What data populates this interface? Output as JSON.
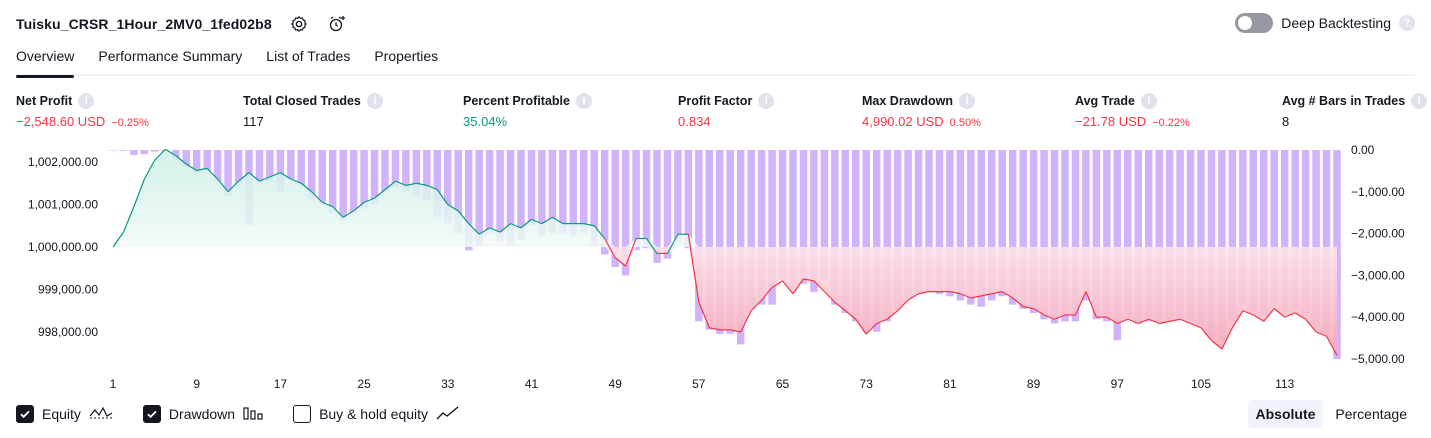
{
  "header": {
    "strategy_name": "Tuisku_CRSR_1Hour_2MV0_1fed02b8",
    "deep_backtesting_label": "Deep Backtesting",
    "deep_backtesting_enabled": false
  },
  "tabs": [
    {
      "label": "Overview",
      "active": true
    },
    {
      "label": "Performance Summary",
      "active": false
    },
    {
      "label": "List of Trades",
      "active": false
    },
    {
      "label": "Properties",
      "active": false
    }
  ],
  "metrics": [
    {
      "label": "Net Profit",
      "value": "−2,548.60 USD",
      "pct": "−0.25%",
      "tone": "neg"
    },
    {
      "label": "Total Closed Trades",
      "value": "117",
      "pct": "",
      "tone": "neu"
    },
    {
      "label": "Percent Profitable",
      "value": "35.04%",
      "pct": "",
      "tone": "pos"
    },
    {
      "label": "Profit Factor",
      "value": "0.834",
      "pct": "",
      "tone": "neg"
    },
    {
      "label": "Max Drawdown",
      "value": "4,990.02 USD",
      "pct": "0.50%",
      "tone": "neg"
    },
    {
      "label": "Avg Trade",
      "value": "−21.78 USD",
      "pct": "−0.22%",
      "tone": "neg"
    },
    {
      "label": "Avg # Bars in Trades",
      "value": "8",
      "pct": "",
      "tone": "neu"
    }
  ],
  "colors": {
    "positive": "#089981",
    "negative": "#f23645",
    "drawdown_bar": "#d1b3fb",
    "equity_fill_pos": "#cdeee6",
    "equity_fill_neg": "#f7a8b8"
  },
  "chart_data": {
    "type": "area",
    "x_ticks": [
      "1",
      "9",
      "17",
      "25",
      "33",
      "41",
      "49",
      "57",
      "65",
      "73",
      "81",
      "89",
      "97",
      "105",
      "113"
    ],
    "y_left_ticks": [
      "1,002,000.00",
      "1,001,000.00",
      "1,000,000.00",
      "999,000.00",
      "998,000.00"
    ],
    "y_left_values": [
      1002000,
      1001000,
      1000000,
      999000,
      998000
    ],
    "y_right_ticks": [
      "0.00",
      "−1,000.00",
      "−2,000.00",
      "−3,000.00",
      "−4,000.00",
      "−5,000.00"
    ],
    "y_right_values": [
      0,
      -1000,
      -2000,
      -3000,
      -4000,
      -5000
    ],
    "baseline": 1000000,
    "series": [
      {
        "name": "Equity",
        "x": [
          1,
          2,
          3,
          4,
          5,
          6,
          7,
          8,
          9,
          10,
          11,
          12,
          13,
          14,
          15,
          16,
          17,
          18,
          19,
          20,
          21,
          22,
          23,
          24,
          25,
          26,
          27,
          28,
          29,
          30,
          31,
          32,
          33,
          34,
          35,
          36,
          37,
          38,
          39,
          40,
          41,
          42,
          43,
          44,
          45,
          46,
          47,
          48,
          49,
          50,
          51,
          52,
          53,
          54,
          55,
          56,
          57,
          58,
          59,
          60,
          61,
          62,
          63,
          64,
          65,
          66,
          67,
          68,
          69,
          70,
          71,
          72,
          73,
          74,
          75,
          76,
          77,
          78,
          79,
          80,
          81,
          82,
          83,
          84,
          85,
          86,
          87,
          88,
          89,
          90,
          91,
          92,
          93,
          94,
          95,
          96,
          97,
          98,
          99,
          100,
          101,
          102,
          103,
          104,
          105,
          106,
          107,
          108,
          109,
          110,
          111,
          112,
          113,
          114,
          115,
          116,
          117,
          118
        ],
        "values": [
          1000000,
          1000350,
          1000950,
          1001600,
          1002050,
          1002300,
          1002150,
          1001950,
          1001800,
          1001850,
          1001600,
          1001300,
          1001550,
          1001750,
          1001550,
          1001650,
          1001750,
          1001600,
          1001500,
          1001300,
          1001050,
          1000950,
          1000700,
          1000850,
          1001050,
          1001150,
          1001350,
          1001550,
          1001450,
          1001500,
          1001450,
          1001350,
          1001000,
          1000850,
          1000550,
          1000300,
          1000450,
          1000350,
          1000550,
          1000450,
          1000650,
          1000550,
          1000700,
          1000550,
          1000550,
          1000550,
          1000500,
          1000200,
          999750,
          999550,
          1000200,
          1000200,
          999850,
          999850,
          1000300,
          1000300,
          998700,
          998100,
          998050,
          998050,
          998000,
          998500,
          998750,
          999050,
          999200,
          998900,
          999250,
          999200,
          998950,
          998700,
          998500,
          998300,
          997950,
          998200,
          998300,
          998500,
          998750,
          998900,
          998950,
          998950,
          998950,
          998900,
          998800,
          998850,
          998900,
          998950,
          998800,
          998600,
          998550,
          998400,
          998300,
          998400,
          998400,
          998950,
          998350,
          998350,
          998200,
          998300,
          998200,
          998300,
          998200,
          998250,
          998300,
          998200,
          998100,
          997800,
          997600,
          998100,
          998500,
          998400,
          998250,
          998550,
          998350,
          998450,
          998300,
          998000,
          997900,
          997450
        ]
      },
      {
        "name": "Drawdown",
        "x": [
          1,
          2,
          3,
          4,
          5,
          6,
          7,
          8,
          9,
          10,
          11,
          12,
          13,
          14,
          15,
          16,
          17,
          18,
          19,
          20,
          21,
          22,
          23,
          24,
          25,
          26,
          27,
          28,
          29,
          30,
          31,
          32,
          33,
          34,
          35,
          36,
          37,
          38,
          39,
          40,
          41,
          42,
          43,
          44,
          45,
          46,
          47,
          48,
          49,
          50,
          51,
          52,
          53,
          54,
          55,
          56,
          57,
          58,
          59,
          60,
          61,
          62,
          63,
          64,
          65,
          66,
          67,
          68,
          69,
          70,
          71,
          72,
          73,
          74,
          75,
          76,
          77,
          78,
          79,
          80,
          81,
          82,
          83,
          84,
          85,
          86,
          87,
          88,
          89,
          90,
          91,
          92,
          93,
          94,
          95,
          96,
          97,
          98,
          99,
          100,
          101,
          102,
          103,
          104,
          105,
          106,
          107,
          108,
          109,
          110,
          111,
          112,
          113,
          114,
          115,
          116,
          117,
          118
        ],
        "values": [
          0,
          -20,
          -120,
          -100,
          -40,
          -30,
          -200,
          -400,
          -550,
          -500,
          -750,
          -1100,
          -800,
          -1800,
          -800,
          -750,
          -1000,
          -700,
          -850,
          -1200,
          -1300,
          -1500,
          -1700,
          -1500,
          -1400,
          -1300,
          -1000,
          -900,
          -1000,
          -1100,
          -1200,
          -1600,
          -1750,
          -2000,
          -2400,
          -2300,
          -2000,
          -2200,
          -2300,
          -2150,
          -1800,
          -2050,
          -2000,
          -2000,
          -2050,
          -2000,
          -2300,
          -2500,
          -2800,
          -3000,
          -2400,
          -2350,
          -2700,
          -2600,
          -2200,
          -2350,
          -4100,
          -4300,
          -4400,
          -4400,
          -4650,
          -3800,
          -3700,
          -3700,
          -3100,
          -3350,
          -3200,
          -3400,
          -3100,
          -3700,
          -3900,
          -4100,
          -4350,
          -4350,
          -4100,
          -3800,
          -3550,
          -3400,
          -3400,
          -3450,
          -3500,
          -3600,
          -3700,
          -3750,
          -3600,
          -3500,
          -3700,
          -3800,
          -3900,
          -4050,
          -4150,
          -4100,
          -4100,
          -3600,
          -4050,
          -4100,
          -4550,
          -4000,
          -4150,
          -4100,
          -4100,
          -4050,
          -4000,
          -4050,
          -4200,
          -4500,
          -4600,
          -4100,
          -3700,
          -3900,
          -3950,
          -3700,
          -3850,
          -3800,
          -3900,
          -4200,
          -4400,
          -5000
        ]
      }
    ]
  },
  "footer": {
    "legend": [
      {
        "label": "Equity",
        "checked": true
      },
      {
        "label": "Drawdown",
        "checked": true
      },
      {
        "label": "Buy & hold equity",
        "checked": false
      }
    ],
    "modes": [
      {
        "label": "Absolute",
        "active": true
      },
      {
        "label": "Percentage",
        "active": false
      }
    ]
  }
}
